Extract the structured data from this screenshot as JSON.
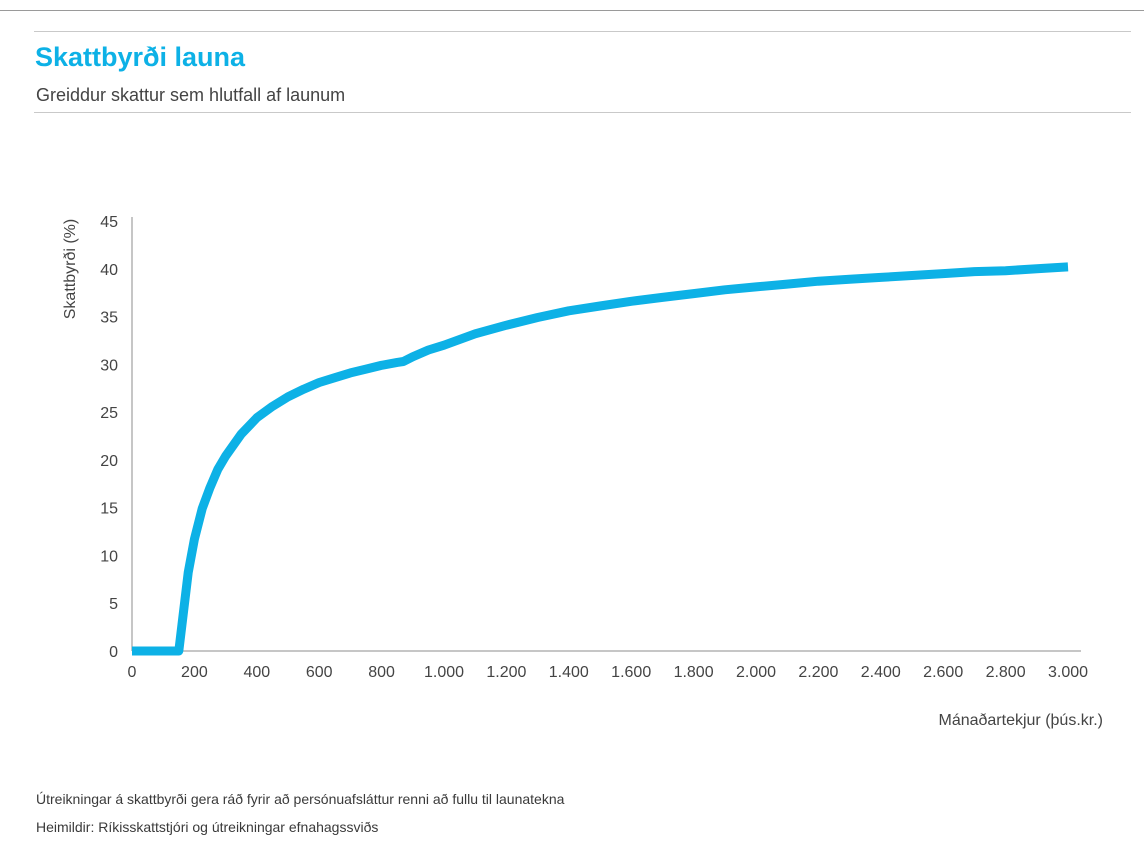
{
  "header": {
    "title": "Skattbyrði launa",
    "subtitle": "Greiddur skattur sem hlutfall af launum"
  },
  "footer": {
    "note": "Útreikningar á skattbyrði gera ráð fyrir að persónuafsláttur renni að fullu til launatekna",
    "sources": "Heimildir: Ríkisskattstjóri og útreikningar efnahagssviðs"
  },
  "chart_data": {
    "type": "line",
    "title": "Skattbyrði launa",
    "subtitle": "Greiddur skattur sem hlutfall af launum",
    "xlabel": "Mánaðartekjur (þús.kr.)",
    "ylabel": "Skattbyrði (%)",
    "xlim": [
      0,
      3000
    ],
    "ylim": [
      0,
      45
    ],
    "xticks": [
      0,
      200,
      400,
      600,
      800,
      1000,
      1200,
      1400,
      1600,
      1800,
      2000,
      2200,
      2400,
      2600,
      2800,
      3000
    ],
    "xtick_labels": [
      "0",
      "200",
      "400",
      "600",
      "800",
      "1.000",
      "1.200",
      "1.400",
      "1.600",
      "1.800",
      "2.000",
      "2.200",
      "2.400",
      "2.600",
      "2.800",
      "3.000"
    ],
    "yticks": [
      0,
      5,
      10,
      15,
      20,
      25,
      30,
      35,
      40,
      45
    ],
    "ytick_labels": [
      "0",
      "5",
      "10",
      "15",
      "20",
      "25",
      "30",
      "35",
      "40",
      "45"
    ],
    "grid": false,
    "legend": "none",
    "series": [
      {
        "color": "#0db1e6",
        "x": [
          0,
          50,
          100,
          150,
          160,
          180,
          200,
          225,
          250,
          275,
          300,
          350,
          400,
          450,
          500,
          550,
          600,
          650,
          700,
          750,
          800,
          850,
          870,
          900,
          950,
          1000,
          1100,
          1200,
          1300,
          1400,
          1500,
          1600,
          1700,
          1800,
          1900,
          2000,
          2100,
          2200,
          2300,
          2400,
          2500,
          2600,
          2700,
          2800,
          2900,
          3000
        ],
        "y": [
          0,
          0,
          0,
          0,
          2.7,
          8.2,
          11.7,
          14.9,
          17.1,
          19.0,
          20.4,
          22.7,
          24.4,
          25.6,
          26.6,
          27.4,
          28.1,
          28.6,
          29.1,
          29.5,
          29.9,
          30.2,
          30.3,
          30.8,
          31.5,
          32.0,
          33.2,
          34.1,
          34.9,
          35.6,
          36.1,
          36.6,
          37.0,
          37.4,
          37.8,
          38.1,
          38.4,
          38.7,
          38.9,
          39.1,
          39.3,
          39.5,
          39.7,
          39.8,
          40.0,
          40.2
        ]
      }
    ]
  }
}
